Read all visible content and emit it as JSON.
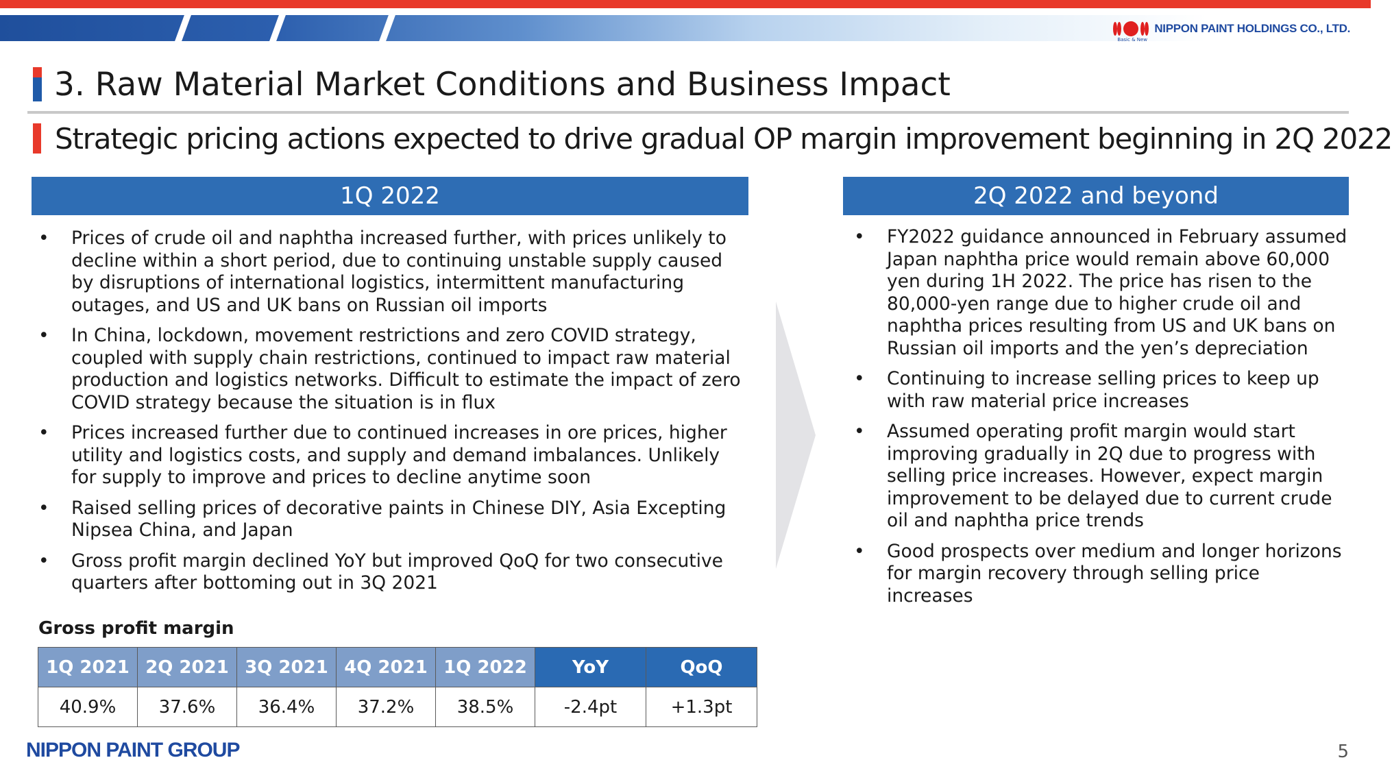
{
  "header": {
    "company_logo_text": "NIPPON PAINT HOLDINGS CO., LTD.",
    "logo_tagline": "Basic & New"
  },
  "title": "3. Raw Material Market Conditions and Business Impact",
  "subtitle": "Strategic pricing actions expected to drive gradual OP margin improvement beginning in 2Q 2022",
  "left_panel": {
    "heading": "1Q 2022",
    "bullets": [
      "Prices of crude oil and naphtha increased further, with prices unlikely to decline within a short period, due to continuing unstable supply caused by disruptions of international logistics, intermittent manufacturing outages, and US and UK bans on Russian oil imports",
      "In China, lockdown, movement restrictions and zero COVID strategy, coupled with supply chain restrictions, continued to impact raw material production and logistics networks. Difficult to estimate the impact of zero COVID strategy because the situation is in flux",
      "Prices increased further due to continued increases in ore prices, higher utility and logistics costs, and supply and demand imbalances. Unlikely for supply to improve and prices to decline anytime soon",
      "Raised selling prices of decorative paints in Chinese DIY, Asia Excepting Nipsea China, and Japan",
      "Gross profit margin declined YoY but improved QoQ for two consecutive quarters after bottoming out in 3Q 2021"
    ]
  },
  "right_panel": {
    "heading": "2Q 2022 and beyond",
    "bullets": [
      "FY2022 guidance announced in February assumed Japan naphtha price would remain above 60,000 yen during 1H 2022. The price has risen to the 80,000-yen range due to higher crude oil and naphtha prices resulting from US and UK bans on Russian oil imports and the yen’s depreciation",
      "Continuing to increase selling prices to keep up with raw material price increases",
      "Assumed operating profit margin would start improving gradually in 2Q due to progress with selling price increases. However, expect margin improvement to be delayed due to current crude oil and naphtha price trends",
      "Good prospects over medium and longer horizons for margin recovery through selling price increases"
    ]
  },
  "bullet_symbol": "•",
  "gross_profit_table": {
    "label": "Gross profit margin",
    "headers": [
      "1Q 2021",
      "2Q 2021",
      "3Q 2021",
      "4Q 2021",
      "1Q 2022",
      "YoY",
      "QoQ"
    ],
    "values": [
      "40.9%",
      "37.6%",
      "36.4%",
      "37.2%",
      "38.5%",
      "-2.4pt",
      "+1.3pt"
    ]
  },
  "footer": {
    "group_logo_text": "NIPPON PAINT GROUP",
    "page_number": "5"
  },
  "colors": {
    "accent_red": "#e8392a",
    "header_blue": "#2e6db4",
    "table_quarter_header": "#7f9ec9",
    "table_change_header": "#2a6ab3",
    "logo_blue": "#1f4aa0"
  }
}
